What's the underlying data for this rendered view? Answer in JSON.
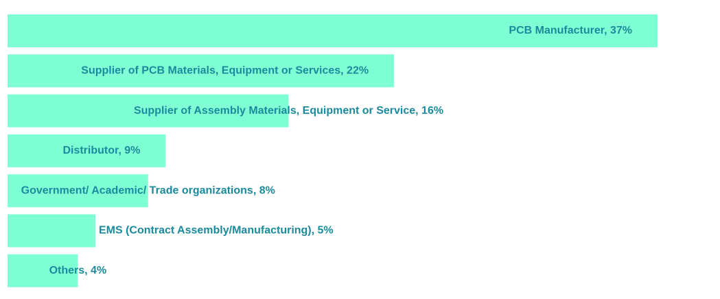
{
  "chart_data": {
    "type": "bar",
    "orientation": "horizontal",
    "categories": [
      "PCB Manufacturer",
      "Supplier of PCB Materials, Equipment or Services",
      "Supplier of Assembly Materials, Equipment or Service",
      "Distributor",
      "Government/ Academic/ Trade organizations",
      "EMS (Contract Assembly/Manufacturing)",
      "Others"
    ],
    "values": [
      37,
      22,
      16,
      9,
      8,
      5,
      4
    ],
    "labels": [
      "PCB Manufacturer, 37%",
      "Supplier of PCB Materials, Equipment or Services, 22%",
      "Supplier of Assembly Materials, Equipment or Service, 16%",
      "Distributor, 9%",
      "Government/ Academic/ Trade organizations, 8%",
      "EMS (Contract Assembly/Manufacturing), 5%",
      "Others, 4%"
    ],
    "title": "",
    "xlabel": "",
    "ylabel": "",
    "grid": false,
    "legend": "none"
  },
  "colors": {
    "bar": "#7fffd4",
    "label": "#1b8a9c",
    "background": "#ffffff"
  }
}
